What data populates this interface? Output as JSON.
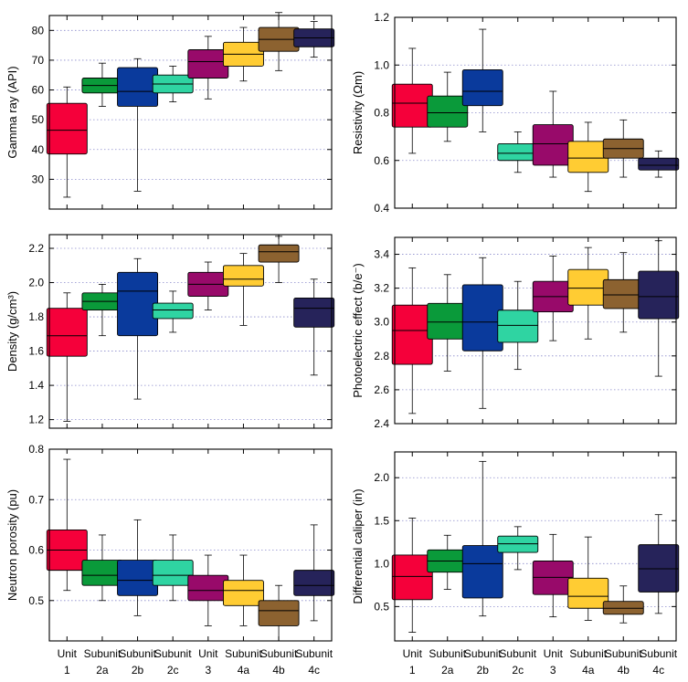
{
  "chart_data": [
    {
      "type": "box",
      "ylabel": "Gamma ray (API)",
      "ylim": [
        20,
        85
      ],
      "yticks": [
        30,
        40,
        50,
        60,
        70,
        80
      ],
      "grid": "horizontal-dotted",
      "boxes": [
        {
          "min": 24,
          "q1": 38.5,
          "median": 46.5,
          "q3": 55.5,
          "max": 61
        },
        {
          "min": 54.5,
          "q1": 59,
          "median": 61.5,
          "q3": 64,
          "max": 69
        },
        {
          "min": 26,
          "q1": 54.5,
          "median": 59.5,
          "q3": 67.5,
          "max": 70.5
        },
        {
          "min": 56,
          "q1": 59,
          "median": 62,
          "q3": 65,
          "max": 68
        },
        {
          "min": 57,
          "q1": 64,
          "median": 69.5,
          "q3": 73.5,
          "max": 78
        },
        {
          "min": 63,
          "q1": 68,
          "median": 72,
          "q3": 76,
          "max": 81
        },
        {
          "min": 66.5,
          "q1": 73,
          "median": 77,
          "q3": 81,
          "max": 86
        },
        {
          "min": 71,
          "q1": 74.5,
          "median": 77.5,
          "q3": 80.5,
          "max": 83
        }
      ]
    },
    {
      "type": "box",
      "ylabel": "Resistivity (Ωm)",
      "ylim": [
        0.4,
        1.2
      ],
      "yticks": [
        "0.4",
        "0.6",
        "0.8",
        "1.0",
        "1.2"
      ],
      "grid": "horizontal-dotted",
      "boxes": [
        {
          "min": 0.63,
          "q1": 0.74,
          "median": 0.84,
          "q3": 0.92,
          "max": 1.07
        },
        {
          "min": 0.68,
          "q1": 0.74,
          "median": 0.8,
          "q3": 0.87,
          "max": 0.97
        },
        {
          "min": 0.72,
          "q1": 0.83,
          "median": 0.89,
          "q3": 0.98,
          "max": 1.15
        },
        {
          "min": 0.55,
          "q1": 0.6,
          "median": 0.63,
          "q3": 0.67,
          "max": 0.72
        },
        {
          "min": 0.53,
          "q1": 0.58,
          "median": 0.67,
          "q3": 0.75,
          "max": 0.89
        },
        {
          "min": 0.47,
          "q1": 0.55,
          "median": 0.61,
          "q3": 0.68,
          "max": 0.76
        },
        {
          "min": 0.53,
          "q1": 0.61,
          "median": 0.65,
          "q3": 0.69,
          "max": 0.77
        },
        {
          "min": 0.53,
          "q1": 0.56,
          "median": 0.58,
          "q3": 0.61,
          "max": 0.64
        }
      ]
    },
    {
      "type": "box",
      "ylabel": "Density (g/cm³)",
      "ylim": [
        1.15,
        2.28
      ],
      "yticks": [
        "1.2",
        "1.4",
        "1.6",
        "1.8",
        "2.0",
        "2.2"
      ],
      "grid": "horizontal-dotted",
      "boxes": [
        {
          "min": 1.19,
          "q1": 1.57,
          "median": 1.69,
          "q3": 1.85,
          "max": 1.94
        },
        {
          "min": 1.69,
          "q1": 1.84,
          "median": 1.89,
          "q3": 1.94,
          "max": 1.99
        },
        {
          "min": 1.32,
          "q1": 1.69,
          "median": 1.95,
          "q3": 2.06,
          "max": 2.14
        },
        {
          "min": 1.71,
          "q1": 1.79,
          "median": 1.84,
          "q3": 1.88,
          "max": 1.95
        },
        {
          "min": 1.84,
          "q1": 1.92,
          "median": 1.99,
          "q3": 2.06,
          "max": 2.12
        },
        {
          "min": 1.75,
          "q1": 1.98,
          "median": 2.02,
          "q3": 2.1,
          "max": 2.17
        },
        {
          "min": 2.0,
          "q1": 2.12,
          "median": 2.18,
          "q3": 2.22,
          "max": 2.27
        },
        {
          "min": 1.46,
          "q1": 1.74,
          "median": 1.85,
          "q3": 1.91,
          "max": 2.02
        }
      ]
    },
    {
      "type": "box",
      "ylabel": "Photoelectric effect (b/e⁻)",
      "ylim": [
        2.4,
        3.5
      ],
      "yticks": [
        "2.4",
        "2.6",
        "2.8",
        "3.0",
        "3.2",
        "3.4"
      ],
      "grid": "horizontal-dotted",
      "boxes": [
        {
          "min": 2.46,
          "q1": 2.75,
          "median": 2.95,
          "q3": 3.1,
          "max": 3.32
        },
        {
          "min": 2.71,
          "q1": 2.9,
          "median": 3.0,
          "q3": 3.11,
          "max": 3.28
        },
        {
          "min": 2.49,
          "q1": 2.83,
          "median": 3.0,
          "q3": 3.22,
          "max": 3.38
        },
        {
          "min": 2.72,
          "q1": 2.88,
          "median": 2.98,
          "q3": 3.07,
          "max": 3.24
        },
        {
          "min": 2.89,
          "q1": 3.06,
          "median": 3.15,
          "q3": 3.24,
          "max": 3.39
        },
        {
          "min": 2.9,
          "q1": 3.1,
          "median": 3.2,
          "q3": 3.31,
          "max": 3.44
        },
        {
          "min": 2.94,
          "q1": 3.08,
          "median": 3.16,
          "q3": 3.25,
          "max": 3.41
        },
        {
          "min": 2.68,
          "q1": 3.02,
          "median": 3.15,
          "q3": 3.3,
          "max": 3.48
        }
      ]
    },
    {
      "type": "box",
      "ylabel": "Neutron porosity (pu)",
      "ylim": [
        0.42,
        0.8
      ],
      "yticks": [
        "0.5",
        "0.6",
        "0.7",
        "0.8"
      ],
      "grid": "horizontal-dotted",
      "boxes": [
        {
          "min": 0.52,
          "q1": 0.56,
          "median": 0.6,
          "q3": 0.64,
          "max": 0.78
        },
        {
          "min": 0.5,
          "q1": 0.53,
          "median": 0.55,
          "q3": 0.58,
          "max": 0.63
        },
        {
          "min": 0.47,
          "q1": 0.51,
          "median": 0.54,
          "q3": 0.58,
          "max": 0.66
        },
        {
          "min": 0.5,
          "q1": 0.53,
          "median": 0.55,
          "q3": 0.58,
          "max": 0.63
        },
        {
          "min": 0.45,
          "q1": 0.5,
          "median": 0.52,
          "q3": 0.55,
          "max": 0.59
        },
        {
          "min": 0.45,
          "q1": 0.49,
          "median": 0.52,
          "q3": 0.54,
          "max": 0.59
        },
        {
          "min": 0.42,
          "q1": 0.45,
          "median": 0.48,
          "q3": 0.5,
          "max": 0.53
        },
        {
          "min": 0.46,
          "q1": 0.51,
          "median": 0.53,
          "q3": 0.56,
          "max": 0.65
        }
      ]
    },
    {
      "type": "box",
      "ylabel": "Differential caliper (in)",
      "ylim": [
        0.1,
        2.3
      ],
      "yticks": [
        "0.5",
        "1.0",
        "1.5",
        "2.0"
      ],
      "grid": "horizontal-dotted",
      "boxes": [
        {
          "min": 0.2,
          "q1": 0.58,
          "median": 0.85,
          "q3": 1.1,
          "max": 1.53
        },
        {
          "min": 0.7,
          "q1": 0.9,
          "median": 1.03,
          "q3": 1.16,
          "max": 1.33
        },
        {
          "min": 0.39,
          "q1": 0.6,
          "median": 1.0,
          "q3": 1.21,
          "max": 2.19
        },
        {
          "min": 0.93,
          "q1": 1.13,
          "median": 1.23,
          "q3": 1.32,
          "max": 1.43
        },
        {
          "min": 0.38,
          "q1": 0.64,
          "median": 0.84,
          "q3": 1.03,
          "max": 1.34
        },
        {
          "min": 0.34,
          "q1": 0.48,
          "median": 0.62,
          "q3": 0.83,
          "max": 1.31
        },
        {
          "min": 0.31,
          "q1": 0.41,
          "median": 0.48,
          "q3": 0.56,
          "max": 0.74
        },
        {
          "min": 0.42,
          "q1": 0.67,
          "median": 0.94,
          "q3": 1.22,
          "max": 1.57
        }
      ]
    }
  ],
  "categories": [
    {
      "top": "Unit",
      "bottom": "1"
    },
    {
      "top": "Subunit",
      "bottom": "2a"
    },
    {
      "top": "Subunit",
      "bottom": "2b"
    },
    {
      "top": "Subunit",
      "bottom": "2c"
    },
    {
      "top": "Unit",
      "bottom": "3"
    },
    {
      "top": "Subunit",
      "bottom": "4a"
    },
    {
      "top": "Subunit",
      "bottom": "4b"
    },
    {
      "top": "Subunit",
      "bottom": "4c"
    }
  ],
  "colors": [
    "#f5003a",
    "#0a9a3a",
    "#0a3a9c",
    "#2fd4a2",
    "#980a6a",
    "#ffcc33",
    "#8c6230",
    "#26235a"
  ]
}
